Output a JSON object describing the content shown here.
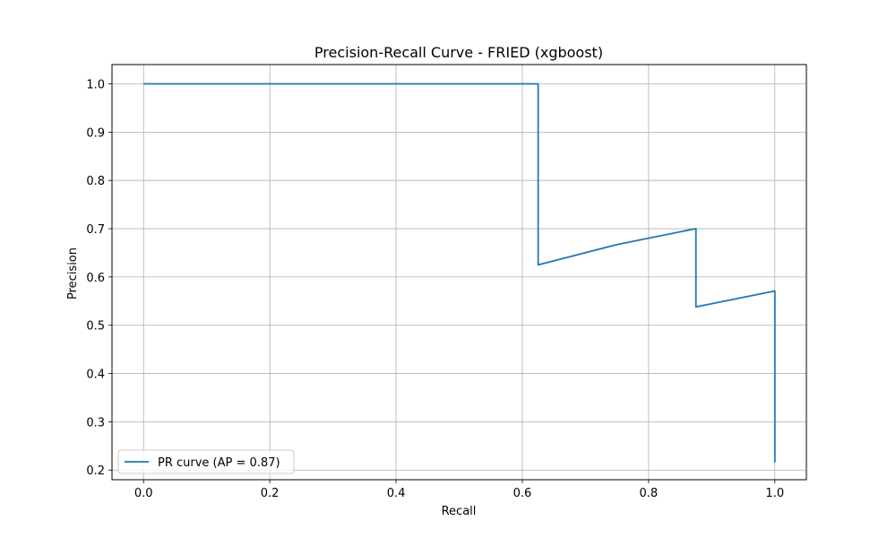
{
  "chart_data": {
    "type": "line",
    "title": "Precision-Recall Curve - FRIED (xgboost)",
    "xlabel": "Recall",
    "ylabel": "Precision",
    "xlim": [
      -0.05,
      1.05
    ],
    "ylim": [
      0.18,
      1.04
    ],
    "x_ticks": [
      0.0,
      0.2,
      0.4,
      0.6,
      0.8,
      1.0
    ],
    "y_ticks": [
      0.2,
      0.3,
      0.4,
      0.5,
      0.6,
      0.7,
      0.8,
      0.9,
      1.0
    ],
    "x_tick_labels": [
      "0.0",
      "0.2",
      "0.4",
      "0.6",
      "0.8",
      "1.0"
    ],
    "y_tick_labels": [
      "0.2",
      "0.3",
      "0.4",
      "0.5",
      "0.6",
      "0.7",
      "0.8",
      "0.9",
      "1.0"
    ],
    "grid": true,
    "legend_position": "lower-left",
    "series": [
      {
        "name": "PR curve (AP = 0.87)",
        "color": "#1f77b4",
        "points": [
          [
            0.0,
            1.0
          ],
          [
            0.625,
            1.0
          ],
          [
            0.625,
            0.625
          ],
          [
            0.75,
            0.667
          ],
          [
            0.875,
            0.7
          ],
          [
            0.875,
            0.538
          ],
          [
            1.0,
            0.571
          ],
          [
            1.0,
            0.216
          ]
        ]
      }
    ]
  }
}
